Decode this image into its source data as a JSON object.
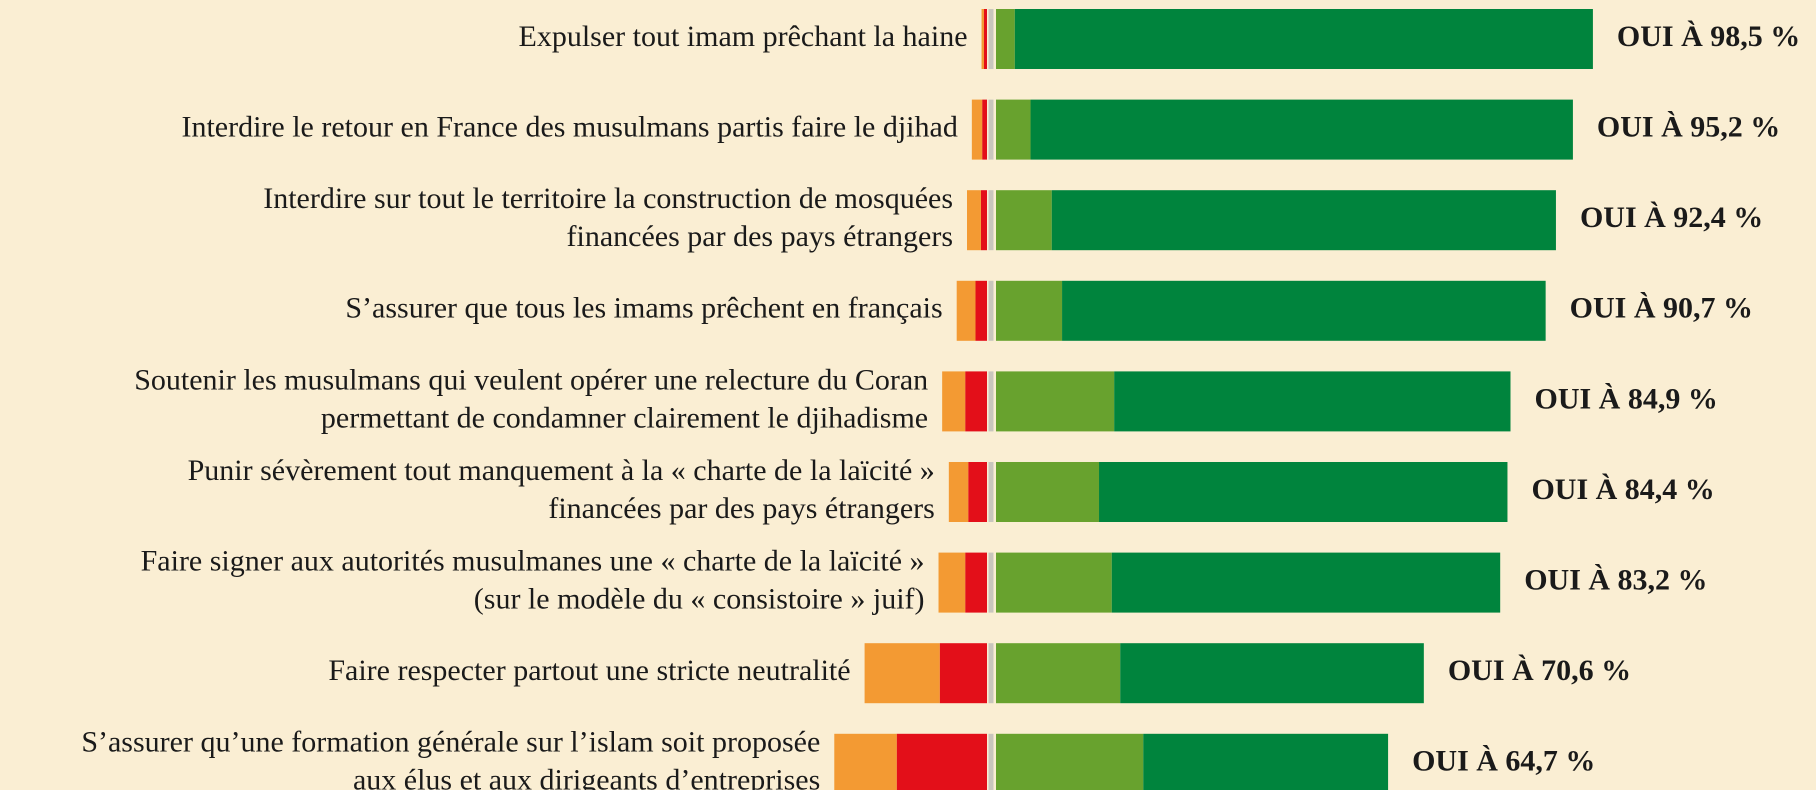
{
  "chart_data": {
    "type": "diverging-bar",
    "categories": [
      [
        "Expulser tout imam prêchant la haine"
      ],
      [
        "Interdire le retour en France des musulmans partis faire le djihad"
      ],
      [
        "Interdire sur tout le territoire la construction de mosquées",
        "financées par des pays étrangers"
      ],
      [
        "S’assurer que tous les imams prêchent en français"
      ],
      [
        "Soutenir les musulmans qui veulent opérer une relecture du Coran",
        "permettant de condamner clairement le djihadisme"
      ],
      [
        "Punir sévèrement tout manquement à la « charte de la laïcité »",
        "financées par des pays étrangers"
      ],
      [
        "Faire signer aux autorités musulmanes une « charte de la laïcité »",
        "(sur le modèle du « consistoire » juif)"
      ],
      [
        "Faire respecter partout une stricte neutralité"
      ],
      [
        "S’assurer qu’une formation générale sur l’islam soit proposée",
        "aux élus et aux dirigeants d’entreprises"
      ]
    ],
    "series": [
      {
        "color": "#e30f19",
        "side": "left",
        "values": [
          0.5,
          0.8,
          1.0,
          1.9,
          3.6,
          3.1,
          3.6,
          7.8,
          14.9
        ]
      },
      {
        "color": "#f39a33",
        "side": "left",
        "values": [
          0.4,
          1.7,
          2.3,
          3.1,
          3.8,
          3.2,
          4.4,
          12.4,
          10.3
        ]
      },
      {
        "color": "#68a22e",
        "side": "right",
        "values": [
          3.1,
          5.7,
          9.2,
          10.9,
          19.5,
          17.0,
          19.1,
          20.5,
          24.3
        ]
      },
      {
        "color": "#00843d",
        "side": "right",
        "values": [
          95.4,
          89.5,
          83.2,
          79.8,
          65.4,
          67.4,
          64.1,
          50.1,
          40.4
        ]
      }
    ],
    "values": [
      98.5,
      95.2,
      92.4,
      90.7,
      84.9,
      84.4,
      83.2,
      70.6,
      64.7
    ],
    "value_labels": [
      "OUI À 98,5 %",
      "OUI À 95,2 %",
      "OUI À 92,4 %",
      "OUI À 90,7 %",
      "OUI À 84,9 %",
      "OUI À 84,4 %",
      "OUI À 83,2 %",
      "OUI À 70,6 %",
      "OUI À 64,7 %"
    ]
  }
}
